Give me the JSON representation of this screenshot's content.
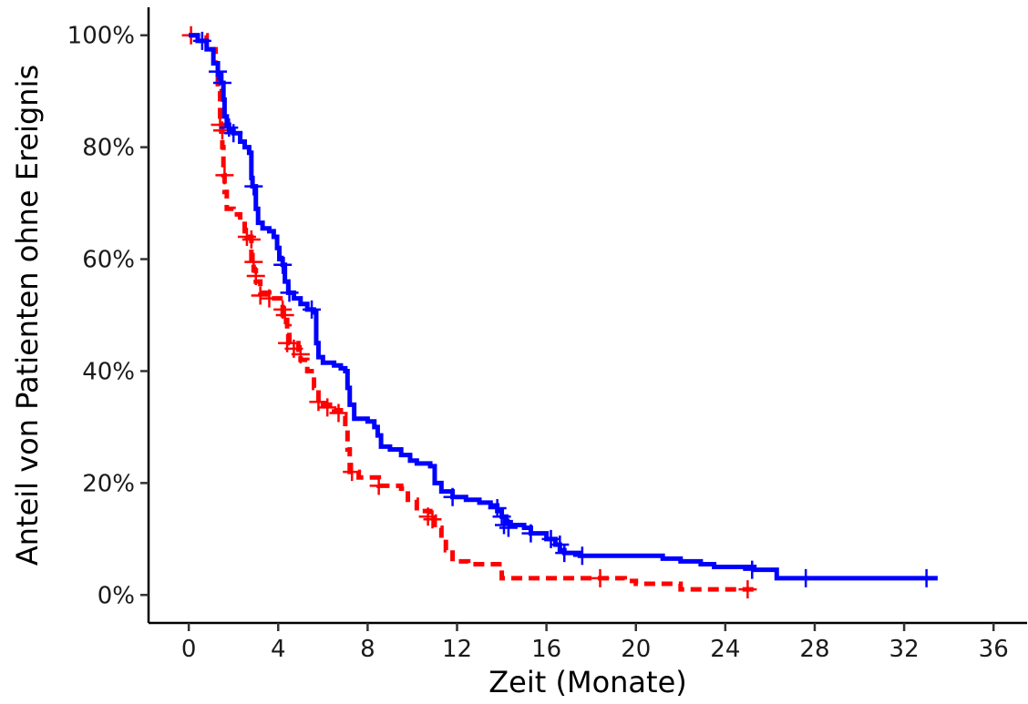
{
  "chart_data": {
    "type": "line",
    "step": true,
    "xlabel": "Zeit (Monate)",
    "ylabel": "Anteil von Patienten ohne Ereignis",
    "xlim": [
      -1.8,
      37.5
    ],
    "ylim": [
      -0.05,
      1.05
    ],
    "xticks": [
      0,
      4,
      8,
      12,
      16,
      20,
      24,
      28,
      32,
      36
    ],
    "yticks": [
      0,
      0.2,
      0.4,
      0.6,
      0.8,
      1.0
    ],
    "ytick_labels": [
      "0%",
      "20%",
      "40%",
      "60%",
      "80%",
      "100%"
    ],
    "grid": false,
    "legend": "none",
    "series": [
      {
        "color": "#0000ff",
        "dash": "solid",
        "points": [
          [
            0,
            1.0
          ],
          [
            0.4,
            0.99
          ],
          [
            0.8,
            0.975
          ],
          [
            1.1,
            0.95
          ],
          [
            1.3,
            0.93
          ],
          [
            1.45,
            0.915
          ],
          [
            1.55,
            0.885
          ],
          [
            1.6,
            0.855
          ],
          [
            1.7,
            0.84
          ],
          [
            1.8,
            0.83
          ],
          [
            2.0,
            0.825
          ],
          [
            2.3,
            0.81
          ],
          [
            2.5,
            0.8
          ],
          [
            2.7,
            0.79
          ],
          [
            2.8,
            0.745
          ],
          [
            2.85,
            0.73
          ],
          [
            3.0,
            0.69
          ],
          [
            3.1,
            0.665
          ],
          [
            3.3,
            0.655
          ],
          [
            3.6,
            0.65
          ],
          [
            3.8,
            0.64
          ],
          [
            3.95,
            0.62
          ],
          [
            4.05,
            0.6
          ],
          [
            4.2,
            0.59
          ],
          [
            4.3,
            0.56
          ],
          [
            4.45,
            0.54
          ],
          [
            4.7,
            0.53
          ],
          [
            5.0,
            0.52
          ],
          [
            5.3,
            0.51
          ],
          [
            5.6,
            0.505
          ],
          [
            5.7,
            0.45
          ],
          [
            5.8,
            0.425
          ],
          [
            6.0,
            0.415
          ],
          [
            6.5,
            0.41
          ],
          [
            6.8,
            0.405
          ],
          [
            7.0,
            0.4
          ],
          [
            7.1,
            0.37
          ],
          [
            7.2,
            0.34
          ],
          [
            7.4,
            0.315
          ],
          [
            8.0,
            0.31
          ],
          [
            8.3,
            0.3
          ],
          [
            8.45,
            0.285
          ],
          [
            8.6,
            0.265
          ],
          [
            9.0,
            0.26
          ],
          [
            9.5,
            0.25
          ],
          [
            9.9,
            0.24
          ],
          [
            10.2,
            0.235
          ],
          [
            10.8,
            0.23
          ],
          [
            11.0,
            0.2
          ],
          [
            11.3,
            0.185
          ],
          [
            11.8,
            0.175
          ],
          [
            12.4,
            0.17
          ],
          [
            13.0,
            0.165
          ],
          [
            13.5,
            0.16
          ],
          [
            13.8,
            0.15
          ],
          [
            14.0,
            0.14
          ],
          [
            14.2,
            0.13
          ],
          [
            14.4,
            0.125
          ],
          [
            15.0,
            0.12
          ],
          [
            15.3,
            0.11
          ],
          [
            16.0,
            0.1
          ],
          [
            16.4,
            0.09
          ],
          [
            16.6,
            0.08
          ],
          [
            16.8,
            0.075
          ],
          [
            17.5,
            0.07
          ],
          [
            19.5,
            0.07
          ],
          [
            21.2,
            0.065
          ],
          [
            22.0,
            0.06
          ],
          [
            22.9,
            0.055
          ],
          [
            23.5,
            0.05
          ],
          [
            25.3,
            0.045
          ],
          [
            26.3,
            0.03
          ],
          [
            33.5,
            0.03
          ]
        ],
        "censored": [
          [
            0.6,
            0.99
          ],
          [
            1.3,
            0.935
          ],
          [
            1.5,
            0.915
          ],
          [
            1.8,
            0.835
          ],
          [
            2.0,
            0.825
          ],
          [
            2.9,
            0.73
          ],
          [
            4.2,
            0.59
          ],
          [
            4.5,
            0.54
          ],
          [
            5.5,
            0.51
          ],
          [
            11.8,
            0.175
          ],
          [
            13.8,
            0.155
          ],
          [
            14.0,
            0.14
          ],
          [
            14.1,
            0.125
          ],
          [
            14.3,
            0.12
          ],
          [
            15.3,
            0.11
          ],
          [
            16.2,
            0.1
          ],
          [
            16.6,
            0.09
          ],
          [
            16.8,
            0.075
          ],
          [
            17.6,
            0.07
          ],
          [
            25.2,
            0.045
          ],
          [
            27.6,
            0.03
          ],
          [
            33.0,
            0.03
          ]
        ]
      },
      {
        "color": "#ff0000",
        "dash": "dashed",
        "points": [
          [
            0,
            1.0
          ],
          [
            0.8,
            0.975
          ],
          [
            1.2,
            0.95
          ],
          [
            1.3,
            0.9
          ],
          [
            1.4,
            0.85
          ],
          [
            1.5,
            0.8
          ],
          [
            1.55,
            0.75
          ],
          [
            1.6,
            0.72
          ],
          [
            1.7,
            0.69
          ],
          [
            2.0,
            0.68
          ],
          [
            2.3,
            0.67
          ],
          [
            2.5,
            0.65
          ],
          [
            2.6,
            0.64
          ],
          [
            2.8,
            0.6
          ],
          [
            2.9,
            0.58
          ],
          [
            3.0,
            0.56
          ],
          [
            3.2,
            0.54
          ],
          [
            3.6,
            0.53
          ],
          [
            4.1,
            0.52
          ],
          [
            4.2,
            0.5
          ],
          [
            4.4,
            0.48
          ],
          [
            4.5,
            0.45
          ],
          [
            4.9,
            0.43
          ],
          [
            5.0,
            0.42
          ],
          [
            5.3,
            0.4
          ],
          [
            5.6,
            0.37
          ],
          [
            5.8,
            0.345
          ],
          [
            6.0,
            0.34
          ],
          [
            6.5,
            0.33
          ],
          [
            6.8,
            0.32
          ],
          [
            7.0,
            0.3
          ],
          [
            7.1,
            0.26
          ],
          [
            7.2,
            0.22
          ],
          [
            7.6,
            0.21
          ],
          [
            8.5,
            0.195
          ],
          [
            9.5,
            0.19
          ],
          [
            9.8,
            0.17
          ],
          [
            10.2,
            0.15
          ],
          [
            10.8,
            0.14
          ],
          [
            11.0,
            0.12
          ],
          [
            11.3,
            0.1
          ],
          [
            11.5,
            0.08
          ],
          [
            11.8,
            0.06
          ],
          [
            12.5,
            0.055
          ],
          [
            14.0,
            0.03
          ],
          [
            18.5,
            0.03
          ],
          [
            19.5,
            0.025
          ],
          [
            20.0,
            0.02
          ],
          [
            21.9,
            0.02
          ],
          [
            22.0,
            0.01
          ],
          [
            25.3,
            0.01
          ]
        ],
        "censored": [
          [
            0.1,
            1.0
          ],
          [
            1.4,
            0.84
          ],
          [
            1.5,
            0.83
          ],
          [
            1.6,
            0.75
          ],
          [
            2.6,
            0.64
          ],
          [
            2.8,
            0.635
          ],
          [
            2.9,
            0.595
          ],
          [
            3.0,
            0.57
          ],
          [
            3.2,
            0.535
          ],
          [
            3.6,
            0.53
          ],
          [
            4.2,
            0.51
          ],
          [
            4.3,
            0.5
          ],
          [
            4.4,
            0.45
          ],
          [
            4.7,
            0.44
          ],
          [
            5.0,
            0.43
          ],
          [
            5.8,
            0.345
          ],
          [
            6.2,
            0.335
          ],
          [
            6.7,
            0.325
          ],
          [
            7.3,
            0.22
          ],
          [
            8.5,
            0.195
          ],
          [
            10.7,
            0.14
          ],
          [
            10.9,
            0.135
          ],
          [
            18.4,
            0.03
          ],
          [
            25.0,
            0.01
          ]
        ]
      }
    ]
  }
}
